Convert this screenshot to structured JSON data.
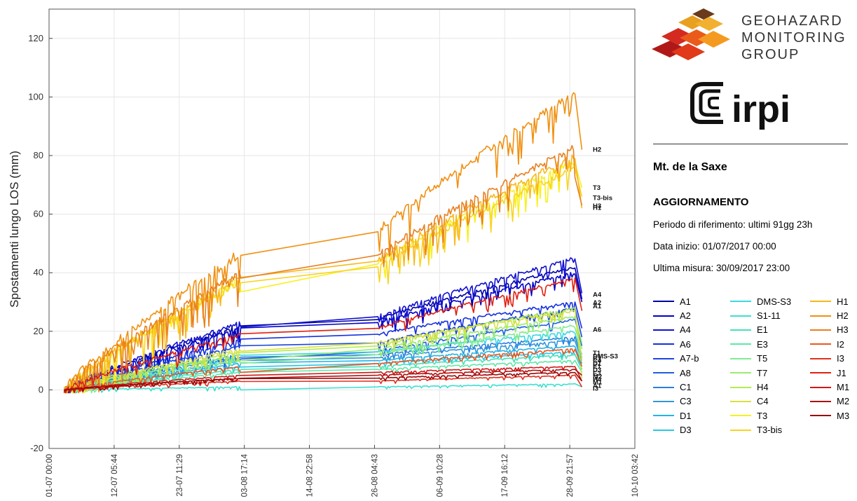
{
  "chart_data": {
    "type": "line",
    "title": "",
    "xlabel": "",
    "ylabel": "Spostamenti lungo LOS (mm)",
    "ylim": [
      -20,
      130
    ],
    "yticks": [
      -20,
      0,
      20,
      40,
      60,
      80,
      100,
      120
    ],
    "xticks": [
      "01-07 00:00",
      "12-07 05:44",
      "23-07 11:29",
      "03-08 17:14",
      "14-08 22:58",
      "26-08 04:43",
      "06-09 10:28",
      "17-09 16:12",
      "28-09 21:57",
      "10-10 03:42"
    ],
    "xlim_days": [
      0,
      101.15
    ],
    "grid": true,
    "legend": "right",
    "end_labels": [
      {
        "text": "H2",
        "y": 82
      },
      {
        "text": "T3",
        "y": 69
      },
      {
        "text": "T3-bis",
        "y": 65.5
      },
      {
        "text": "H3",
        "y": 62.8
      },
      {
        "text": "H1",
        "y": 62.2
      },
      {
        "text": "A4",
        "y": 32.5
      },
      {
        "text": "A2",
        "y": 29.8
      },
      {
        "text": "A1",
        "y": 28.6
      },
      {
        "text": "A6",
        "y": 20.5
      },
      {
        "text": "T1",
        "y": 12.5
      },
      {
        "text": "DMS-S3",
        "y": 11.5
      },
      {
        "text": "C1",
        "y": 10.8
      },
      {
        "text": "C4",
        "y": 10.0
      },
      {
        "text": "D1",
        "y": 9.0
      },
      {
        "text": "E1",
        "y": 8.0
      },
      {
        "text": "D3",
        "y": 6.8
      },
      {
        "text": "E3",
        "y": 5.6
      },
      {
        "text": "M2",
        "y": 4.5
      },
      {
        "text": "H4",
        "y": 3.6
      },
      {
        "text": "M1",
        "y": 2.6
      },
      {
        "text": "A1",
        "y": 1.4
      },
      {
        "text": "I3",
        "y": 0.5
      }
    ],
    "series": [
      {
        "name": "A1",
        "color": "#0000a8",
        "values": {
          "start": 0,
          "pre_gap": 22,
          "mid": 24,
          "last": 42,
          "end": 31
        }
      },
      {
        "name": "A2",
        "color": "#0000c8",
        "values": {
          "start": 0,
          "pre_gap": 21,
          "mid": 23,
          "last": 40,
          "end": 30
        }
      },
      {
        "name": "A4",
        "color": "#1010d0",
        "values": {
          "start": 0,
          "pre_gap": 23,
          "mid": 25,
          "last": 45,
          "end": 33
        }
      },
      {
        "name": "A6",
        "color": "#1430e0",
        "values": {
          "start": 0,
          "pre_gap": 17,
          "mid": 19,
          "last": 30,
          "end": 21
        }
      },
      {
        "name": "A7-b",
        "color": "#1a46dc",
        "values": {
          "start": 0,
          "pre_gap": 15,
          "mid": 16,
          "last": 28,
          "end": 18
        }
      },
      {
        "name": "A8",
        "color": "#1e60e0",
        "values": {
          "start": 0,
          "pre_gap": 12,
          "mid": 13,
          "last": 24,
          "end": 15
        }
      },
      {
        "name": "C1",
        "color": "#2a7fe0",
        "values": {
          "start": 0,
          "pre_gap": 11,
          "mid": 12,
          "last": 18,
          "end": 11
        }
      },
      {
        "name": "C3",
        "color": "#3196d8",
        "values": {
          "start": 0,
          "pre_gap": 10,
          "mid": 11,
          "last": 17,
          "end": 10
        }
      },
      {
        "name": "D1",
        "color": "#23b4e6",
        "values": {
          "start": 0,
          "pre_gap": 9,
          "mid": 10,
          "last": 15,
          "end": 9
        }
      },
      {
        "name": "D3",
        "color": "#26c8e8",
        "values": {
          "start": 0,
          "pre_gap": 8,
          "mid": 9,
          "last": 13,
          "end": 7
        }
      },
      {
        "name": "DMS-S3",
        "color": "#3cd8e0",
        "values": {
          "start": 0,
          "pre_gap": 12,
          "mid": 13,
          "last": 20,
          "end": 12
        }
      },
      {
        "name": "S1-11",
        "color": "#3ae0d0",
        "values": {
          "start": 0,
          "pre_gap": 1,
          "mid": 1,
          "last": 2,
          "end": 1
        }
      },
      {
        "name": "E1",
        "color": "#48e0b8",
        "values": {
          "start": 0,
          "pre_gap": 7,
          "mid": 8,
          "last": 12,
          "end": 8
        }
      },
      {
        "name": "E3",
        "color": "#5ee8a8",
        "values": {
          "start": 0,
          "pre_gap": 6,
          "mid": 7,
          "last": 10,
          "end": 6
        }
      },
      {
        "name": "T5",
        "color": "#80ec90",
        "values": {
          "start": 0,
          "pre_gap": 10,
          "mid": 12,
          "last": 22,
          "end": 14
        }
      },
      {
        "name": "T7",
        "color": "#98ec70",
        "values": {
          "start": 0,
          "pre_gap": 12,
          "mid": 14,
          "last": 25,
          "end": 16
        }
      },
      {
        "name": "H4",
        "color": "#b4ec50",
        "values": {
          "start": 0,
          "pre_gap": 13,
          "mid": 15,
          "last": 28,
          "end": 4
        }
      },
      {
        "name": "C4",
        "color": "#d8e040",
        "values": {
          "start": 0,
          "pre_gap": 14,
          "mid": 16,
          "last": 27,
          "end": 10
        }
      },
      {
        "name": "T3",
        "color": "#f8f020",
        "values": {
          "start": 0,
          "pre_gap": 38,
          "mid": 43,
          "last": 78,
          "end": 69
        }
      },
      {
        "name": "T3-bis",
        "color": "#f8d420",
        "values": {
          "start": 0,
          "pre_gap": 37,
          "mid": 42,
          "last": 76,
          "end": 66
        }
      },
      {
        "name": "H1",
        "color": "#f8b818",
        "values": {
          "start": 0,
          "pre_gap": 39,
          "mid": 44,
          "last": 80,
          "end": 62
        }
      },
      {
        "name": "H2",
        "color": "#f09010",
        "values": {
          "start": 0,
          "pre_gap": 47,
          "mid": 54,
          "last": 102,
          "end": 82
        }
      },
      {
        "name": "H3",
        "color": "#e88020",
        "values": {
          "start": 0,
          "pre_gap": 40,
          "mid": 46,
          "last": 83,
          "end": 63
        }
      },
      {
        "name": "I2",
        "color": "#e85820",
        "values": {
          "start": 0,
          "pre_gap": 8,
          "mid": 9,
          "last": 14,
          "end": 8
        }
      },
      {
        "name": "I3",
        "color": "#e03020",
        "values": {
          "start": 0,
          "pre_gap": 3,
          "mid": 3,
          "last": 5,
          "end": 1
        }
      },
      {
        "name": "J1",
        "color": "#e02010",
        "values": {
          "start": 0,
          "pre_gap": 19,
          "mid": 21,
          "last": 38,
          "end": 27
        }
      },
      {
        "name": "M1",
        "color": "#d01818",
        "values": {
          "start": 0,
          "pre_gap": 5,
          "mid": 6,
          "last": 8,
          "end": 3
        }
      },
      {
        "name": "M2",
        "color": "#b01010",
        "values": {
          "start": 0,
          "pre_gap": 4,
          "mid": 5,
          "last": 7,
          "end": 5
        }
      },
      {
        "name": "M3",
        "color": "#980808",
        "values": {
          "start": 0,
          "pre_gap": 4,
          "mid": 4,
          "last": 6,
          "end": 3
        }
      }
    ]
  },
  "side": {
    "logo": {
      "line1": "GEOHAZARD",
      "line2": "MONITORING",
      "line3": "GROUP",
      "irpi": "irpi"
    },
    "site_title": "Mt. de la Saxe",
    "update_title": "AGGIORNAMENTO",
    "period": "Periodo di riferimento: ultimi 91gg 23h",
    "start_date": "Data inizio: 01/07/2017 00:00",
    "last_measure": "Ultima misura:  30/09/2017 23:00"
  },
  "legend_columns": [
    [
      "A1",
      "A2",
      "A4",
      "A6",
      "A7-b",
      "A8",
      "C1",
      "C3",
      "D1",
      "D3"
    ],
    [
      "DMS-S3",
      "S1-11",
      "E1",
      "E3",
      "T5",
      "T7",
      "H4",
      "C4",
      "T3",
      "T3-bis"
    ],
    [
      "H1",
      "H2",
      "H3",
      "I2",
      "I3",
      "J1",
      "M1",
      "M2",
      "M3"
    ]
  ]
}
